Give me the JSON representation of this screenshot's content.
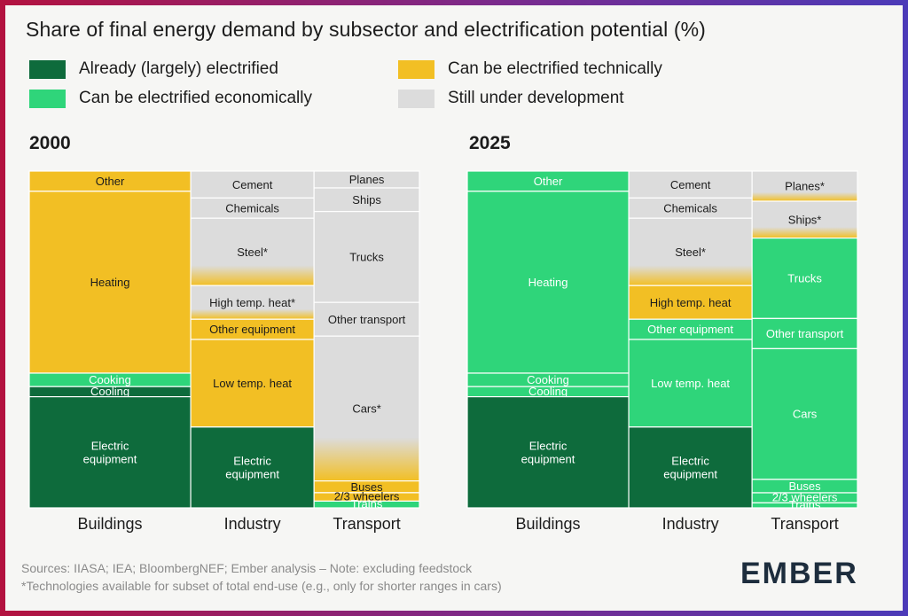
{
  "title": "Share of final energy demand by subsector and electrification potential (%)",
  "legend": [
    {
      "label": "Already (largely) electrified",
      "color": "#0e6b3c"
    },
    {
      "label": "Can be electrified technically",
      "color": "#f2bf24"
    },
    {
      "label": "Can be electrified economically",
      "color": "#2fd57a"
    },
    {
      "label": "Still under development",
      "color": "#dcdcdc"
    }
  ],
  "chart_data": [
    {
      "type": "marimekko",
      "title": "2000",
      "categories": [
        "Buildings",
        "Industry",
        "Transport"
      ],
      "category_widths": [
        36,
        27.5,
        23.5
      ],
      "stacks": [
        [
          {
            "label": "Other",
            "value": 6,
            "status": "technical"
          },
          {
            "label": "Heating",
            "value": 54,
            "status": "technical"
          },
          {
            "label": "Cooking",
            "value": 4,
            "status": "economic"
          },
          {
            "label": "Cooling",
            "value": 3,
            "status": "electrified"
          },
          {
            "label": "Electric equipment",
            "value": 33,
            "status": "electrified"
          }
        ],
        [
          {
            "label": "Cement",
            "value": 8,
            "status": "development"
          },
          {
            "label": "Chemicals",
            "value": 6,
            "status": "development"
          },
          {
            "label": "Steel*",
            "value": 20,
            "status": "development",
            "fade": "technical"
          },
          {
            "label": "High temp. heat*",
            "value": 10,
            "status": "development",
            "fade": "technical"
          },
          {
            "label": "Other equipment",
            "value": 6,
            "status": "technical"
          },
          {
            "label": "Low temp. heat",
            "value": 26,
            "status": "technical"
          },
          {
            "label": "Electric equipment",
            "value": 24,
            "status": "electrified"
          }
        ],
        [
          {
            "label": "Planes",
            "value": 5,
            "status": "development"
          },
          {
            "label": "Ships",
            "value": 7,
            "status": "development"
          },
          {
            "label": "Trucks",
            "value": 27,
            "status": "development"
          },
          {
            "label": "Other transport",
            "value": 10,
            "status": "development"
          },
          {
            "label": "Cars*",
            "value": 43,
            "status": "development",
            "fade": "technical"
          },
          {
            "label": "Buses",
            "value": 3.5,
            "status": "technical"
          },
          {
            "label": "2/3 wheelers",
            "value": 2.5,
            "status": "technical"
          },
          {
            "label": "Trains",
            "value": 2,
            "status": "economic"
          }
        ]
      ]
    },
    {
      "type": "marimekko",
      "title": "2025",
      "categories": [
        "Buildings",
        "Industry",
        "Transport"
      ],
      "category_widths": [
        36,
        27.5,
        23.5
      ],
      "stacks": [
        [
          {
            "label": "Other",
            "value": 6,
            "status": "economic"
          },
          {
            "label": "Heating",
            "value": 54,
            "status": "economic"
          },
          {
            "label": "Cooking",
            "value": 4,
            "status": "economic"
          },
          {
            "label": "Cooling",
            "value": 3,
            "status": "economic"
          },
          {
            "label": "Electric equipment",
            "value": 33,
            "status": "electrified"
          }
        ],
        [
          {
            "label": "Cement",
            "value": 8,
            "status": "development"
          },
          {
            "label": "Chemicals",
            "value": 6,
            "status": "development"
          },
          {
            "label": "Steel*",
            "value": 20,
            "status": "development",
            "fade": "technical"
          },
          {
            "label": "High temp. heat",
            "value": 10,
            "status": "technical"
          },
          {
            "label": "Other equipment",
            "value": 6,
            "status": "economic"
          },
          {
            "label": "Low temp. heat",
            "value": 26,
            "status": "economic"
          },
          {
            "label": "Electric equipment",
            "value": 24,
            "status": "electrified"
          }
        ],
        [
          {
            "label": "Planes*",
            "value": 9,
            "status": "development",
            "fade": "technical"
          },
          {
            "label": "Ships*",
            "value": 11,
            "status": "development",
            "fade": "technical"
          },
          {
            "label": "Trucks",
            "value": 24,
            "status": "economic"
          },
          {
            "label": "Other transport",
            "value": 9,
            "status": "economic"
          },
          {
            "label": "Cars",
            "value": 39,
            "status": "economic"
          },
          {
            "label": "Buses",
            "value": 4,
            "status": "economic"
          },
          {
            "label": "2/3 wheelers",
            "value": 3,
            "status": "economic"
          },
          {
            "label": "Trains",
            "value": 1.5,
            "status": "economic"
          }
        ]
      ]
    }
  ],
  "footer": {
    "sources": "Sources: IIASA; IEA; BloombergNEF; Ember analysis – Note: excluding feedstock",
    "note": "*Technologies available for subset of total end-use (e.g., only for shorter ranges in cars)"
  },
  "logo": "EMBER"
}
